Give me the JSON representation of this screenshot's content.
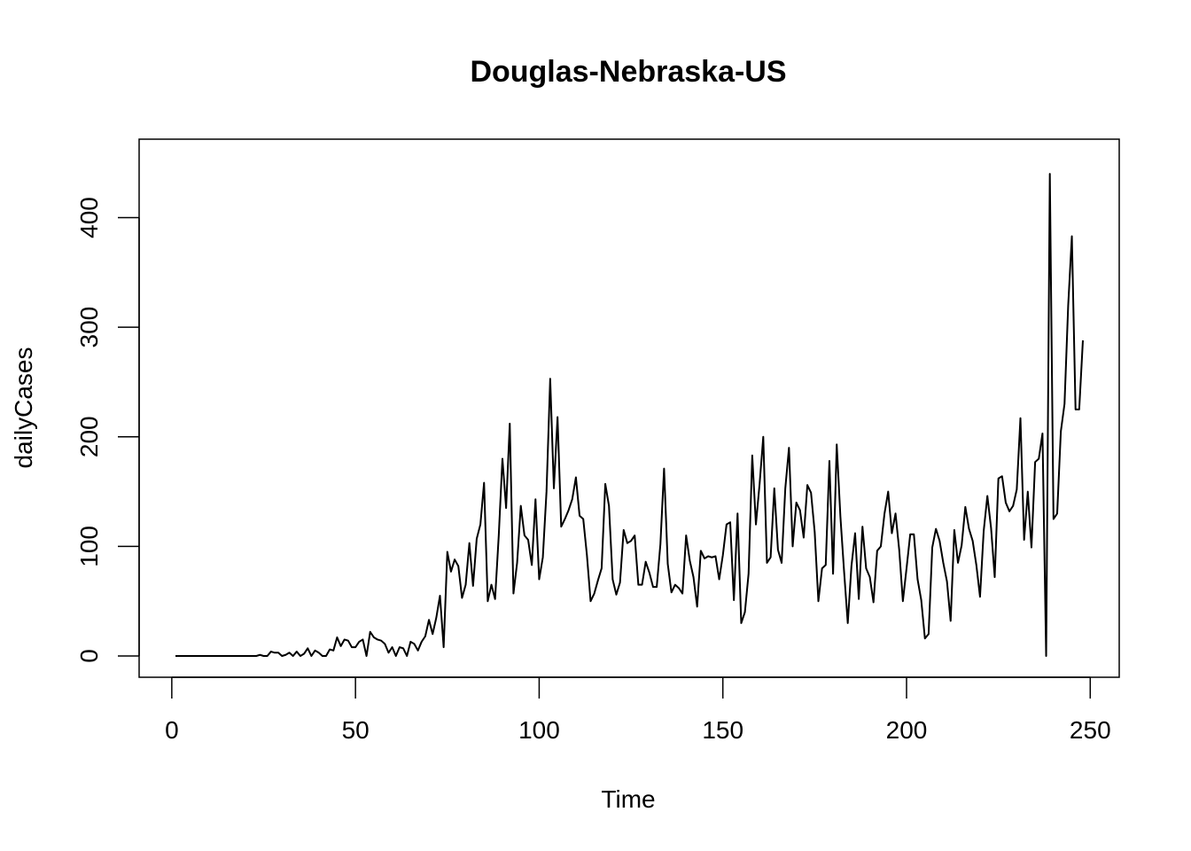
{
  "chart_data": {
    "type": "line",
    "title": "Douglas-Nebraska-US",
    "xlabel": "Time",
    "ylabel": "dailyCases",
    "xlim": [
      1,
      248
    ],
    "ylim": [
      0,
      453
    ],
    "grid": false,
    "legend": "none",
    "line_color": "#000000",
    "x_ticks": [
      0,
      50,
      100,
      150,
      200,
      250
    ],
    "y_ticks": [
      0,
      100,
      200,
      300,
      400
    ],
    "x_tick_labels": [
      "0",
      "50",
      "100",
      "150",
      "200",
      "250"
    ],
    "y_tick_labels": [
      "0",
      "100",
      "200",
      "300",
      "400"
    ],
    "series": [
      {
        "values": [
          0,
          0,
          0,
          0,
          0,
          0,
          0,
          0,
          0,
          0,
          0,
          0,
          0,
          0,
          0,
          0,
          0,
          0,
          0,
          0,
          0,
          0,
          0,
          1,
          0,
          0,
          4,
          3,
          3,
          0,
          1,
          3,
          0,
          4,
          0,
          2,
          7,
          0,
          5,
          3,
          0,
          0,
          6,
          5,
          17,
          9,
          15,
          14,
          8,
          8,
          13,
          15,
          0,
          22,
          17,
          15,
          14,
          11,
          3,
          8,
          0,
          8,
          7,
          0,
          13,
          11,
          5,
          13,
          18,
          33,
          20,
          35,
          55,
          8,
          95,
          77,
          88,
          82,
          53,
          65,
          103,
          64,
          107,
          120,
          158,
          50,
          65,
          52,
          110,
          180,
          135,
          212,
          57,
          85,
          137,
          110,
          106,
          83,
          143,
          70,
          90,
          150,
          253,
          153,
          218,
          118,
          125,
          133,
          143,
          163,
          128,
          125,
          92,
          50,
          57,
          69,
          80,
          157,
          137,
          70,
          56,
          67,
          115,
          103,
          105,
          110,
          65,
          65,
          86,
          76,
          63,
          63,
          102,
          171,
          84,
          58,
          65,
          62,
          57,
          110,
          87,
          72,
          45,
          96,
          89,
          91,
          90,
          91,
          70,
          92,
          120,
          122,
          51,
          130,
          30,
          40,
          75,
          183,
          120,
          157,
          200,
          85,
          90,
          153,
          97,
          85,
          153,
          190,
          100,
          140,
          133,
          108,
          156,
          149,
          113,
          50,
          80,
          83,
          178,
          75,
          193,
          127,
          77,
          30,
          82,
          112,
          52,
          118,
          80,
          72,
          49,
          96,
          100,
          130,
          150,
          112,
          130,
          97,
          50,
          80,
          111,
          111,
          70,
          51,
          16,
          20,
          99,
          116,
          105,
          85,
          68,
          32,
          115,
          85,
          101,
          136,
          116,
          105,
          83,
          54,
          114,
          146,
          117,
          72,
          162,
          164,
          140,
          132,
          137,
          152,
          217,
          106,
          150,
          99,
          177,
          180,
          203,
          0,
          440,
          125,
          130,
          205,
          230,
          320,
          383,
          225,
          225,
          288
        ]
      }
    ]
  }
}
